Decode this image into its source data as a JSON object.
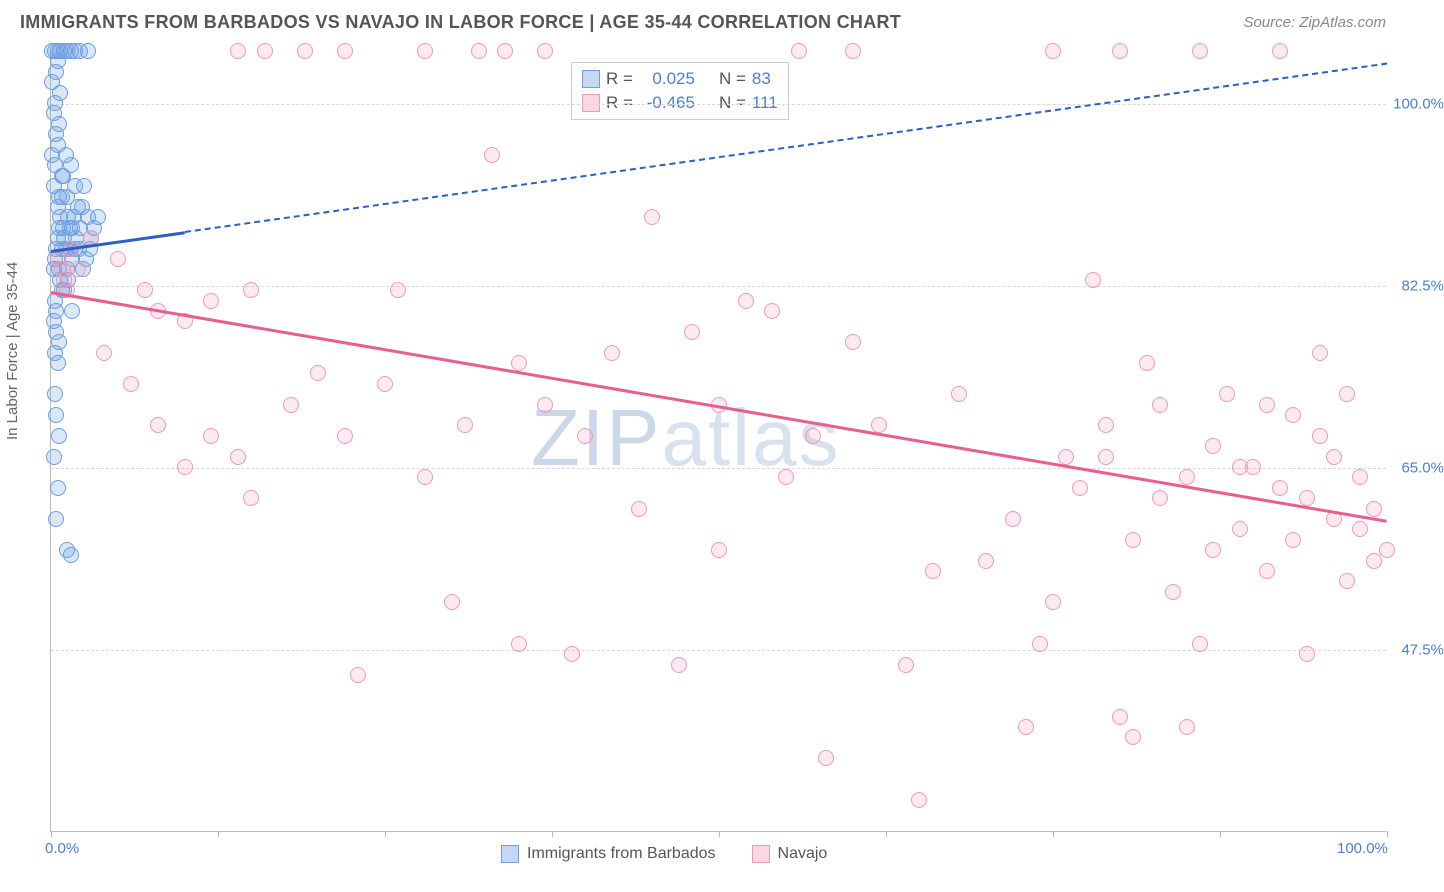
{
  "header": {
    "title": "IMMIGRANTS FROM BARBADOS VS NAVAJO IN LABOR FORCE | AGE 35-44 CORRELATION CHART",
    "source": "Source: ZipAtlas.com"
  },
  "watermark": {
    "bold": "ZIP",
    "thin": "atlas"
  },
  "chart": {
    "type": "scatter",
    "ylabel": "In Labor Force | Age 35-44",
    "xlim": [
      0,
      100
    ],
    "ylim": [
      30,
      105
    ],
    "background_color": "#ffffff",
    "grid_color": "#d8d8d8",
    "y_gridlines": [
      47.5,
      65.0,
      82.5,
      100.0
    ],
    "ytick_labels": [
      "47.5%",
      "65.0%",
      "82.5%",
      "100.0%"
    ],
    "x_ticks": [
      0,
      12.5,
      25,
      37.5,
      50,
      62.5,
      75,
      87.5,
      100
    ],
    "x_tick_labels_shown": {
      "0": "0.0%",
      "100": "100.0%"
    },
    "marker_radius": 8,
    "series": [
      {
        "name": "Immigrants from Barbados",
        "key": "barbados",
        "color_fill": "rgba(108,158,224,0.25)",
        "color_stroke": "#6c9ee0",
        "R": "0.025",
        "N": "83",
        "trend": {
          "x1": 0,
          "y1": 86,
          "x2": 100,
          "y2": 104,
          "color": "#2a5fc6",
          "dashed_after_x": 10
        },
        "points": [
          [
            0.2,
            84
          ],
          [
            0.3,
            85
          ],
          [
            0.4,
            86
          ],
          [
            0.5,
            87
          ],
          [
            0.6,
            88
          ],
          [
            0.7,
            83
          ],
          [
            0.8,
            82
          ],
          [
            0.3,
            81
          ],
          [
            0.4,
            80
          ],
          [
            0.5,
            90
          ],
          [
            0.6,
            91
          ],
          [
            0.7,
            89
          ],
          [
            0.2,
            92
          ],
          [
            0.8,
            93
          ],
          [
            0.3,
            94
          ],
          [
            0.1,
            95
          ],
          [
            0.5,
            96
          ],
          [
            0.4,
            97
          ],
          [
            0.6,
            98
          ],
          [
            0.2,
            99
          ],
          [
            0.3,
            100
          ],
          [
            0.7,
            101
          ],
          [
            0.1,
            102
          ],
          [
            0.4,
            103
          ],
          [
            0.5,
            104
          ],
          [
            0.1,
            105
          ],
          [
            0.3,
            105
          ],
          [
            0.5,
            105
          ],
          [
            0.7,
            105
          ],
          [
            1.0,
            105
          ],
          [
            1.2,
            105
          ],
          [
            1.5,
            105
          ],
          [
            1.8,
            105
          ],
          [
            2.2,
            105
          ],
          [
            2.8,
            105
          ],
          [
            0.2,
            79
          ],
          [
            0.4,
            78
          ],
          [
            0.6,
            77
          ],
          [
            0.3,
            76
          ],
          [
            0.5,
            75
          ],
          [
            0.3,
            72
          ],
          [
            0.4,
            70
          ],
          [
            0.6,
            68
          ],
          [
            0.2,
            66
          ],
          [
            0.5,
            63
          ],
          [
            0.4,
            60
          ],
          [
            1.2,
            57
          ],
          [
            1.5,
            56.5
          ],
          [
            0.8,
            86
          ],
          [
            1.0,
            87
          ],
          [
            1.2,
            84
          ],
          [
            1.4,
            88
          ],
          [
            1.6,
            85
          ],
          [
            1.8,
            86
          ],
          [
            2.0,
            90
          ],
          [
            2.2,
            88
          ],
          [
            2.5,
            92
          ],
          [
            2.8,
            89
          ],
          [
            3.0,
            87
          ],
          [
            1.0,
            82
          ],
          [
            1.3,
            83
          ],
          [
            1.6,
            80
          ],
          [
            1.2,
            91
          ],
          [
            0.9,
            93
          ],
          [
            1.5,
            94
          ],
          [
            1.1,
            95
          ],
          [
            1.7,
            89
          ],
          [
            2.1,
            86
          ],
          [
            2.4,
            84
          ],
          [
            0.9,
            88
          ],
          [
            1.4,
            86
          ],
          [
            1.9,
            87
          ],
          [
            0.6,
            84
          ],
          [
            1.1,
            86
          ],
          [
            1.6,
            88
          ],
          [
            2.3,
            90
          ],
          [
            1.8,
            92
          ],
          [
            1.3,
            89
          ],
          [
            0.8,
            91
          ],
          [
            2.6,
            85
          ],
          [
            3.2,
            88
          ],
          [
            2.9,
            86
          ],
          [
            3.5,
            89
          ]
        ]
      },
      {
        "name": "Navajo",
        "key": "navajo",
        "color_fill": "rgba(240,140,170,0.18)",
        "color_stroke": "#ec9bb6",
        "R": "-0.465",
        "N": "111",
        "trend": {
          "x1": 0,
          "y1": 82,
          "x2": 100,
          "y2": 60,
          "color": "#e85f8c",
          "dashed_after_x": 100
        },
        "points": [
          [
            0.5,
            85
          ],
          [
            0.8,
            84
          ],
          [
            1.0,
            83
          ],
          [
            1.2,
            82
          ],
          [
            1.5,
            86
          ],
          [
            2.0,
            84
          ],
          [
            3,
            87
          ],
          [
            5,
            85
          ],
          [
            7,
            82
          ],
          [
            8,
            80
          ],
          [
            10,
            79
          ],
          [
            12,
            81
          ],
          [
            14,
            105
          ],
          [
            16,
            105
          ],
          [
            19,
            105
          ],
          [
            22,
            105
          ],
          [
            28,
            105
          ],
          [
            32,
            105
          ],
          [
            34,
            105
          ],
          [
            37,
            105
          ],
          [
            56,
            105
          ],
          [
            60,
            105
          ],
          [
            75,
            105
          ],
          [
            80,
            105
          ],
          [
            86,
            105
          ],
          [
            92,
            105
          ],
          [
            4,
            76
          ],
          [
            6,
            73
          ],
          [
            8,
            69
          ],
          [
            10,
            65
          ],
          [
            12,
            68
          ],
          [
            14,
            66
          ],
          [
            15,
            82
          ],
          [
            18,
            71
          ],
          [
            20,
            74
          ],
          [
            22,
            68
          ],
          [
            25,
            73
          ],
          [
            28,
            64
          ],
          [
            33,
            95
          ],
          [
            35,
            75
          ],
          [
            37,
            71
          ],
          [
            39,
            47
          ],
          [
            40,
            68
          ],
          [
            42,
            76
          ],
          [
            45,
            89
          ],
          [
            47,
            46
          ],
          [
            48,
            78
          ],
          [
            50,
            71
          ],
          [
            52,
            81
          ],
          [
            54,
            80
          ],
          [
            55,
            64
          ],
          [
            57,
            68
          ],
          [
            58,
            37
          ],
          [
            60,
            77
          ],
          [
            62,
            69
          ],
          [
            64,
            46
          ],
          [
            65,
            33
          ],
          [
            66,
            55
          ],
          [
            68,
            72
          ],
          [
            70,
            56
          ],
          [
            72,
            60
          ],
          [
            73,
            40
          ],
          [
            74,
            48
          ],
          [
            75,
            52
          ],
          [
            76,
            66
          ],
          [
            78,
            83
          ],
          [
            79,
            69
          ],
          [
            80,
            41
          ],
          [
            81,
            39
          ],
          [
            82,
            75
          ],
          [
            83,
            62
          ],
          [
            84,
            53
          ],
          [
            85,
            40
          ],
          [
            86,
            48
          ],
          [
            87,
            67
          ],
          [
            88,
            72
          ],
          [
            89,
            59
          ],
          [
            90,
            65
          ],
          [
            91,
            55
          ],
          [
            92,
            63
          ],
          [
            93,
            70
          ],
          [
            94,
            62
          ],
          [
            95,
            68
          ],
          [
            96,
            66
          ],
          [
            97,
            72
          ],
          [
            98,
            59
          ],
          [
            99,
            61
          ],
          [
            100,
            57
          ],
          [
            99,
            56
          ],
          [
            98,
            64
          ],
          [
            97,
            54
          ],
          [
            95,
            76
          ],
          [
            93,
            58
          ],
          [
            91,
            71
          ],
          [
            89,
            65
          ],
          [
            94,
            47
          ],
          [
            96,
            60
          ],
          [
            87,
            57
          ],
          [
            85,
            64
          ],
          [
            83,
            71
          ],
          [
            81,
            58
          ],
          [
            79,
            66
          ],
          [
            77,
            63
          ],
          [
            15,
            62
          ],
          [
            23,
            45
          ],
          [
            30,
            52
          ],
          [
            35,
            48
          ],
          [
            26,
            82
          ],
          [
            31,
            69
          ],
          [
            44,
            61
          ],
          [
            50,
            57
          ]
        ]
      }
    ],
    "legend_labels": {
      "barbados": "Immigrants from Barbados",
      "navajo": "Navajo"
    },
    "stats_labels": {
      "R": "R = ",
      "N": "N = "
    }
  }
}
